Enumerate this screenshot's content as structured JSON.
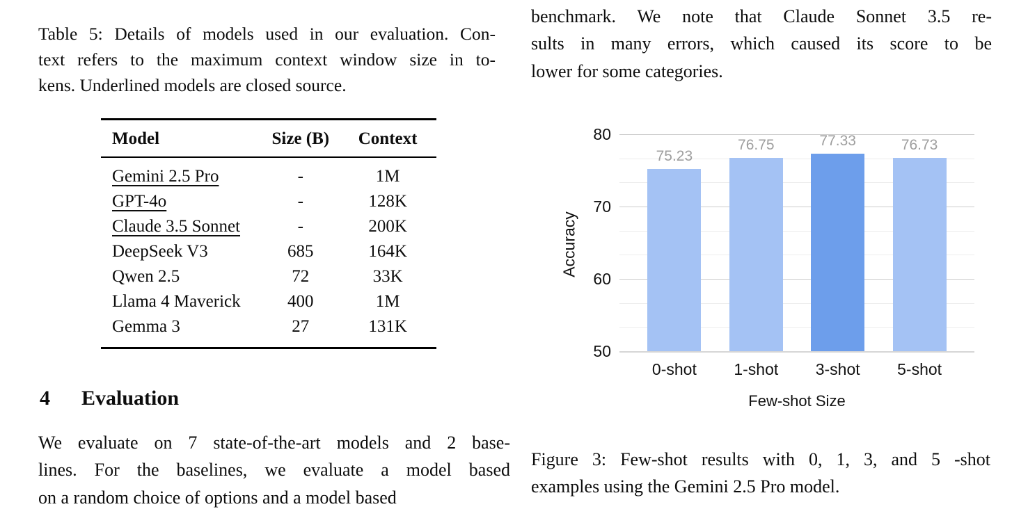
{
  "left_column": {
    "table_caption": {
      "lines": [
        "Table 5: Details of models used in our evaluation. Con-",
        "text refers to the maximum context window size in to-",
        "kens. Underlined models are closed source."
      ]
    },
    "table": {
      "headers": {
        "model": "Model",
        "size": "Size (B)",
        "context": "Context"
      },
      "rows": [
        {
          "model": "Gemini 2.5 Pro",
          "size": "-",
          "context": "1M",
          "closed_source": true
        },
        {
          "model": "GPT-4o",
          "size": "-",
          "context": "128K",
          "closed_source": true
        },
        {
          "model": "Claude 3.5 Sonnet",
          "size": "-",
          "context": "200K",
          "closed_source": true
        },
        {
          "model": "DeepSeek V3",
          "size": "685",
          "context": "164K",
          "closed_source": false
        },
        {
          "model": "Qwen 2.5",
          "size": "72",
          "context": "33K",
          "closed_source": false
        },
        {
          "model": "Llama 4 Maverick",
          "size": "400",
          "context": "1M",
          "closed_source": false
        },
        {
          "model": "Gemma 3",
          "size": "27",
          "context": "131K",
          "closed_source": false
        }
      ]
    },
    "section_heading": {
      "number": "4",
      "title": "Evaluation"
    },
    "body_paragraph": {
      "lines": [
        "We evaluate on 7 state-of-the-art models and 2 base-",
        "lines. For the baselines, we evaluate a model based",
        "on a random choice of options and a model based"
      ]
    }
  },
  "right_column": {
    "top_paragraph": {
      "lines": [
        "benchmark.  We note that Claude Sonnet 3.5 re-",
        "sults in many errors, which caused its score to be",
        "lower for some categories."
      ]
    },
    "figure_caption": {
      "lines": [
        "Figure 3:  Few-shot results with 0, 1, 3, and 5 -shot",
        "examples using the Gemini 2.5 Pro model."
      ]
    }
  },
  "chart_data": {
    "type": "bar",
    "categories": [
      "0-shot",
      "1-shot",
      "3-shot",
      "5-shot"
    ],
    "values": [
      75.23,
      76.75,
      77.33,
      76.73
    ],
    "value_labels": [
      "75.23",
      "76.75",
      "77.33",
      "76.73"
    ],
    "title": "",
    "xlabel": "Few-shot Size",
    "ylabel": "Accuracy",
    "ylim": [
      50,
      80
    ],
    "yticks": [
      80,
      70,
      60,
      50
    ],
    "minor_gridlines_per_interval": 2,
    "grid_on": true,
    "legend_position": "none",
    "bar_colors": [
      "#a4c2f4",
      "#a4c2f4",
      "#6d9eeb",
      "#a4c2f4"
    ],
    "base_bar_color": "#a4c2f4",
    "highlight_bar_color": "#6d9eeb",
    "value_label_color": "#9e9e9e"
  }
}
